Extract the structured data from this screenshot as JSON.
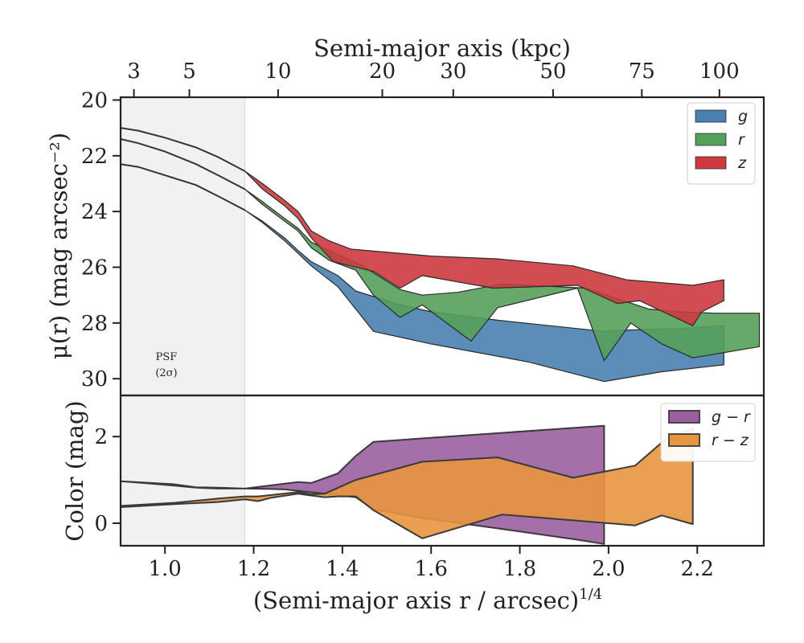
{
  "figure": {
    "top_axis_label": "Semi-major axis (kpc)",
    "upper_ylabel": "μ(r) (mag arcsec⁻²)",
    "lower_ylabel": "Color (mag)",
    "xlabel": "(Semi-major axis r / arcsec)",
    "xlabel_superscript": "1/4",
    "psf_note": [
      "PSF",
      "(2σ)"
    ]
  },
  "chart_data": [
    {
      "type": "area",
      "panel": "surface-brightness",
      "xlim": [
        0.9,
        2.35
      ],
      "ylim": [
        30.6,
        19.9
      ],
      "y_inverted": true,
      "psf_region_x": [
        0.9,
        1.18
      ],
      "xticks": [
        1.0,
        1.2,
        1.4,
        1.6,
        1.8,
        2.0,
        2.2
      ],
      "xtick_labels": [
        "1.0",
        "1.2",
        "1.4",
        "1.6",
        "1.8",
        "2.0",
        "2.2"
      ],
      "yticks": [
        20,
        22,
        24,
        26,
        28,
        30
      ],
      "ytick_labels": [
        "20",
        "22",
        "24",
        "26",
        "28",
        "30"
      ],
      "top_ticks_kpc": [
        3,
        5,
        10,
        20,
        30,
        50,
        75,
        100
      ],
      "top_ticks_x": [
        0.93,
        1.055,
        1.255,
        1.49,
        1.65,
        1.875,
        2.075,
        2.25
      ],
      "legend_position": "top-right",
      "series": [
        {
          "name": "g",
          "color": "#4a7fb0",
          "profile_x": [
            0.9,
            0.94,
            1.0,
            1.07,
            1.12,
            1.18
          ],
          "profile_y": [
            22.3,
            22.4,
            22.7,
            23.05,
            23.45,
            23.95
          ],
          "upper_x": [
            1.18,
            1.22,
            1.27,
            1.3,
            1.33,
            1.39,
            1.43,
            1.52,
            1.6,
            1.75,
            1.99,
            2.05,
            2.16,
            2.26
          ],
          "upper_y": [
            23.95,
            24.35,
            24.95,
            25.4,
            25.8,
            26.3,
            26.85,
            27.3,
            27.6,
            27.9,
            28.3,
            28.25,
            28.2,
            28.1
          ],
          "lower_x": [
            2.26,
            2.12,
            1.99,
            1.82,
            1.6,
            1.47,
            1.43,
            1.39,
            1.33,
            1.3,
            1.27,
            1.22,
            1.18
          ],
          "lower_y": [
            29.5,
            29.75,
            30.1,
            29.4,
            28.75,
            28.3,
            27.5,
            26.7,
            25.95,
            25.5,
            25.05,
            24.4,
            23.95
          ]
        },
        {
          "name": "r",
          "color": "#55a05a",
          "profile_x": [
            0.9,
            0.94,
            1.0,
            1.07,
            1.12,
            1.18
          ],
          "profile_y": [
            21.4,
            21.55,
            21.85,
            22.3,
            22.7,
            23.2
          ],
          "upper_x": [
            1.18,
            1.22,
            1.27,
            1.3,
            1.33,
            1.37,
            1.44,
            1.53,
            1.58,
            1.66,
            1.76,
            1.95,
            2.09,
            2.16,
            2.24,
            2.34
          ],
          "upper_y": [
            23.2,
            23.65,
            24.25,
            24.6,
            25.1,
            25.4,
            25.9,
            26.8,
            27.0,
            26.9,
            26.6,
            26.75,
            27.5,
            27.6,
            27.65,
            27.65
          ],
          "lower_x": [
            2.34,
            2.19,
            2.12,
            2.05,
            1.99,
            1.93,
            1.75,
            1.69,
            1.58,
            1.53,
            1.47,
            1.43,
            1.37,
            1.33,
            1.3,
            1.27,
            1.22,
            1.18
          ],
          "lower_y": [
            28.85,
            29.25,
            28.75,
            28.0,
            29.35,
            26.75,
            27.45,
            28.65,
            27.35,
            27.8,
            27.0,
            26.1,
            25.75,
            25.3,
            24.7,
            24.35,
            23.75,
            23.2
          ]
        },
        {
          "name": "z",
          "color": "#cc3a3f",
          "profile_x": [
            0.9,
            0.94,
            1.0,
            1.07,
            1.12,
            1.18
          ],
          "profile_y": [
            21.0,
            21.1,
            21.35,
            21.7,
            22.05,
            22.55
          ],
          "upper_x": [
            1.18,
            1.22,
            1.27,
            1.3,
            1.33,
            1.37,
            1.42,
            1.6,
            1.75,
            1.92,
            2.04,
            2.19,
            2.26
          ],
          "upper_y": [
            22.55,
            23.0,
            23.6,
            24.0,
            24.7,
            25.05,
            25.35,
            25.6,
            25.7,
            25.95,
            26.45,
            26.65,
            26.45
          ],
          "lower_x": [
            2.26,
            2.21,
            2.19,
            2.07,
            2.02,
            1.93,
            1.74,
            1.58,
            1.53,
            1.47,
            1.38,
            1.33,
            1.3,
            1.27,
            1.22,
            1.18
          ],
          "lower_y": [
            27.2,
            27.6,
            28.1,
            27.2,
            27.3,
            26.65,
            26.75,
            26.3,
            26.75,
            26.15,
            25.8,
            24.95,
            24.25,
            23.8,
            23.2,
            22.55
          ]
        }
      ]
    },
    {
      "type": "area",
      "panel": "color",
      "xlim": [
        0.9,
        2.35
      ],
      "ylim": [
        -0.52,
        2.95
      ],
      "psf_region_x": [
        0.9,
        1.18
      ],
      "xticks": [
        1.0,
        1.2,
        1.4,
        1.6,
        1.8,
        2.0,
        2.2
      ],
      "xtick_labels": [
        "1.0",
        "1.2",
        "1.4",
        "1.6",
        "1.8",
        "2.0",
        "2.2"
      ],
      "yticks": [
        0,
        2
      ],
      "ytick_labels": [
        "0",
        "2"
      ],
      "legend_position": "top-right",
      "series": [
        {
          "name": "g − r",
          "color": "#9b5fa0",
          "upper_x": [
            0.9,
            0.95,
            1.02,
            1.07,
            1.12,
            1.18,
            1.3,
            1.33,
            1.39,
            1.43,
            1.47,
            1.99
          ],
          "upper_y": [
            0.97,
            0.94,
            0.9,
            0.83,
            0.82,
            0.8,
            0.95,
            0.93,
            1.15,
            1.55,
            1.88,
            2.25
          ],
          "lower_x": [
            1.99,
            1.93,
            1.75,
            1.58,
            1.47,
            1.43,
            1.3,
            1.27,
            1.24,
            1.18,
            1.12,
            1.07,
            1.02,
            0.95,
            0.9
          ],
          "lower_y": [
            -0.48,
            -0.38,
            -0.12,
            0.12,
            0.32,
            0.6,
            0.75,
            0.78,
            0.79,
            0.8,
            0.8,
            0.82,
            0.87,
            0.93,
            0.97
          ]
        },
        {
          "name": "r − z",
          "color": "#e8953f",
          "upper_x": [
            0.9,
            1.02,
            1.12,
            1.18,
            1.21,
            1.3,
            1.33,
            1.36,
            1.43,
            1.58,
            1.75,
            1.92,
            2.06,
            2.13,
            2.19
          ],
          "upper_y": [
            0.4,
            0.47,
            0.57,
            0.62,
            0.62,
            0.72,
            0.67,
            0.68,
            1.0,
            1.42,
            1.52,
            1.05,
            1.33,
            1.95,
            2.2
          ],
          "lower_x": [
            2.19,
            2.12,
            2.06,
            1.76,
            1.58,
            1.47,
            1.43,
            1.39,
            1.36,
            1.33,
            1.3,
            1.24,
            1.21,
            1.18,
            1.12,
            1.02,
            0.9
          ],
          "lower_y": [
            -0.02,
            0.18,
            -0.05,
            0.2,
            -0.35,
            0.3,
            0.62,
            0.62,
            0.6,
            0.64,
            0.68,
            0.59,
            0.51,
            0.55,
            0.49,
            0.44,
            0.37
          ]
        }
      ]
    }
  ]
}
